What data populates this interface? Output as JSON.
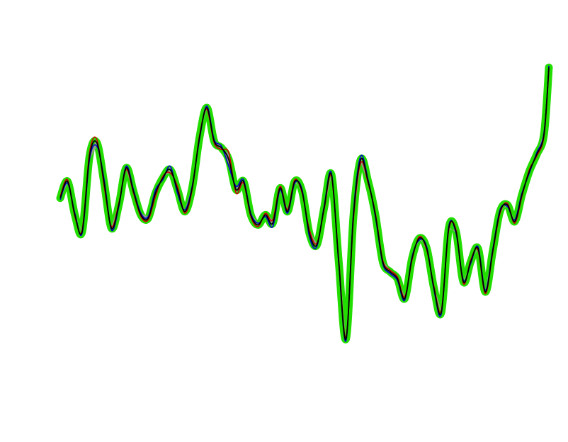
{
  "chart_data": {
    "type": "line",
    "title": "",
    "xlabel": "",
    "ylabel": "",
    "grid": false,
    "axes_visible": false,
    "legend": "none",
    "xlim": [
      0,
      100
    ],
    "ylim": [
      0,
      100
    ],
    "x": [
      0,
      1.5,
      3,
      4.5,
      6,
      7.5,
      9,
      10.5,
      12,
      13.5,
      15,
      16.5,
      18,
      19.5,
      21,
      22.5,
      24,
      25.5,
      27,
      28.5,
      30,
      31.5,
      33,
      34.5,
      36,
      37.5,
      39,
      40.5,
      42,
      43.5,
      45,
      46.5,
      48,
      49.5,
      51,
      52.5,
      54,
      55.5,
      57,
      58.5,
      60,
      61.5,
      63,
      64.5,
      66,
      67.5,
      69,
      70.5,
      72,
      73.5,
      75,
      76.5,
      78,
      79.5,
      81,
      82.5,
      84,
      85.5,
      87,
      88.5,
      90,
      91.5,
      93,
      94.5,
      96,
      97.5,
      99,
      100
    ],
    "series": [
      {
        "name": "",
        "color": "#0000cc",
        "values": [
          52,
          57,
          48,
          42,
          64,
          68,
          58,
          43,
          50,
          62,
          55,
          48,
          47,
          55,
          58,
          62,
          54,
          49,
          56,
          70,
          80,
          70,
          68,
          62,
          56,
          58,
          48,
          45,
          47,
          44,
          55,
          48,
          57,
          55,
          41,
          38,
          50,
          60,
          33,
          10,
          48,
          65,
          58,
          47,
          33,
          30,
          28,
          22,
          35,
          40,
          38,
          25,
          18,
          44,
          42,
          28,
          33,
          38,
          25,
          37,
          49,
          50,
          46,
          54,
          60,
          66,
          72,
          92
        ]
      },
      {
        "name": "",
        "color": "#cc0000",
        "values": [
          53,
          58,
          47,
          43,
          66,
          70,
          56,
          44,
          51,
          61,
          54,
          47,
          46,
          53,
          59,
          60,
          56,
          48,
          55,
          71,
          79,
          69,
          67,
          66,
          54,
          57,
          47,
          44,
          48,
          46,
          56,
          49,
          58,
          54,
          43,
          39,
          49,
          59,
          34,
          11,
          46,
          63,
          57,
          48,
          34,
          31,
          29,
          23,
          34,
          41,
          37,
          26,
          19,
          43,
          43,
          27,
          34,
          37,
          24,
          36,
          48,
          51,
          45,
          53,
          61,
          65,
          71,
          91
        ]
      },
      {
        "name": "",
        "color": "#000000",
        "values": [
          52.5,
          57.5,
          47.5,
          42.5,
          65,
          69,
          57,
          43.5,
          50.5,
          61.5,
          54.5,
          47.5,
          46.5,
          54,
          58.5,
          61,
          55,
          48.5,
          55.5,
          70.5,
          79.5,
          69.5,
          67.5,
          64,
          55,
          57.5,
          47.5,
          44.5,
          47.5,
          45,
          55.5,
          48.5,
          57.5,
          54.5,
          42,
          38.5,
          49.5,
          59.5,
          33.5,
          10.5,
          47,
          64,
          57.5,
          47.5,
          33.5,
          30.5,
          28.5,
          22.5,
          34.5,
          40.5,
          37.5,
          25.5,
          18.5,
          43.5,
          42.5,
          27.5,
          33.5,
          37.5,
          24.5,
          36.5,
          48.5,
          50.5,
          45.5,
          53.5,
          60.5,
          65.5,
          71.5,
          91.5
        ]
      }
    ]
  }
}
